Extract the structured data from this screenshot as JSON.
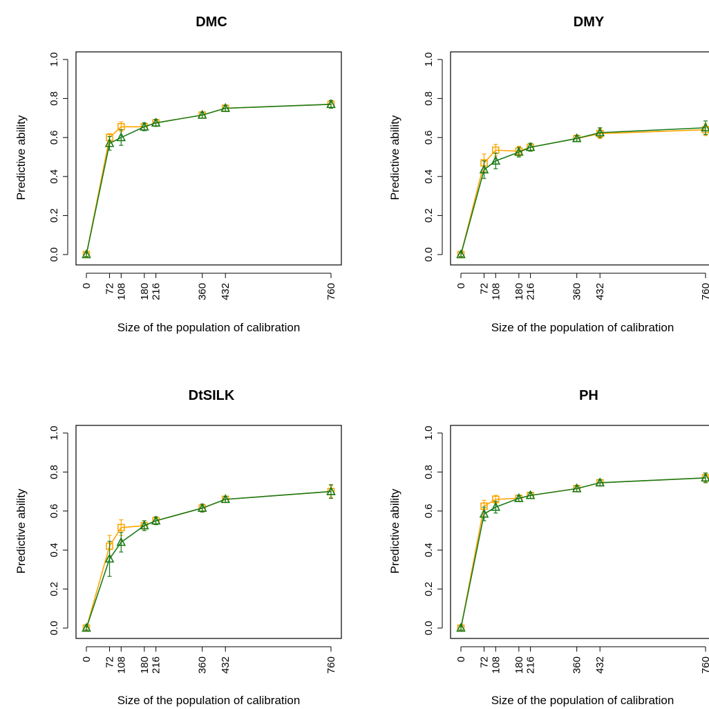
{
  "figure": {
    "ylabel": "Predictive ability",
    "xlabel": "Size of the population of calibration",
    "series_colors": {
      "orange": "#FFA500",
      "green": "#1A7A1A"
    },
    "series_markers": {
      "orange": "square",
      "green": "triangle"
    }
  },
  "chart_data": [
    {
      "type": "line",
      "title": "DMC",
      "xlabel": "Size of the population of calibration",
      "ylabel": "Predictive ability",
      "x": [
        0,
        72,
        108,
        180,
        216,
        360,
        432,
        760
      ],
      "x_ticks": [
        0,
        72,
        108,
        180,
        216,
        360,
        432,
        760
      ],
      "y_ticks": [
        "0.0",
        "0.2",
        "0.4",
        "0.6",
        "0.8",
        "1.0"
      ],
      "ylim": [
        0,
        1
      ],
      "grid": false,
      "series": [
        {
          "color": "#FFA500",
          "marker": "square",
          "values": [
            0.0,
            0.6,
            0.655,
            0.655,
            0.675,
            0.715,
            0.75,
            0.77
          ],
          "err": [
            0.01,
            0.02,
            0.025,
            0.02,
            0.018,
            0.015,
            0.015,
            0.02
          ]
        },
        {
          "color": "#1A7A1A",
          "marker": "triangle",
          "values": [
            0.0,
            0.57,
            0.6,
            0.655,
            0.675,
            0.715,
            0.75,
            0.77
          ],
          "err": [
            0.01,
            0.035,
            0.04,
            0.02,
            0.018,
            0.015,
            0.015,
            0.02
          ]
        }
      ]
    },
    {
      "type": "line",
      "title": "DMY",
      "xlabel": "Size of the population of calibration",
      "ylabel": "Predictive ability",
      "x": [
        0,
        72,
        108,
        180,
        216,
        360,
        432,
        760
      ],
      "x_ticks": [
        0,
        72,
        108,
        180,
        216,
        360,
        432,
        760
      ],
      "y_ticks": [
        "0.0",
        "0.2",
        "0.4",
        "0.6",
        "0.8",
        "1.0"
      ],
      "ylim": [
        0,
        1
      ],
      "grid": false,
      "series": [
        {
          "color": "#FFA500",
          "marker": "square",
          "values": [
            0.0,
            0.47,
            0.535,
            0.53,
            0.55,
            0.595,
            0.62,
            0.64
          ],
          "err": [
            0.01,
            0.045,
            0.03,
            0.025,
            0.02,
            0.015,
            0.025,
            0.03
          ]
        },
        {
          "color": "#1A7A1A",
          "marker": "triangle",
          "values": [
            0.0,
            0.435,
            0.48,
            0.525,
            0.55,
            0.595,
            0.625,
            0.65
          ],
          "err": [
            0.01,
            0.045,
            0.04,
            0.025,
            0.02,
            0.015,
            0.025,
            0.035
          ]
        }
      ]
    },
    {
      "type": "line",
      "title": "DtSILK",
      "xlabel": "Size of the population of calibration",
      "ylabel": "Predictive ability",
      "x": [
        0,
        72,
        108,
        180,
        216,
        360,
        432,
        760
      ],
      "x_ticks": [
        0,
        72,
        108,
        180,
        216,
        360,
        432,
        760
      ],
      "y_ticks": [
        "0.0",
        "0.2",
        "0.4",
        "0.6",
        "0.8",
        "1.0"
      ],
      "ylim": [
        0,
        1
      ],
      "grid": false,
      "series": [
        {
          "color": "#FFA500",
          "marker": "square",
          "values": [
            0.0,
            0.42,
            0.515,
            0.525,
            0.55,
            0.615,
            0.66,
            0.7
          ],
          "err": [
            0.01,
            0.055,
            0.04,
            0.025,
            0.02,
            0.02,
            0.015,
            0.03
          ]
        },
        {
          "color": "#1A7A1A",
          "marker": "triangle",
          "values": [
            0.0,
            0.355,
            0.44,
            0.525,
            0.55,
            0.615,
            0.66,
            0.7
          ],
          "err": [
            0.01,
            0.09,
            0.05,
            0.025,
            0.02,
            0.02,
            0.015,
            0.035
          ]
        }
      ]
    },
    {
      "type": "line",
      "title": "PH",
      "xlabel": "Size of the population of calibration",
      "ylabel": "Predictive ability",
      "x": [
        0,
        72,
        108,
        180,
        216,
        360,
        432,
        760
      ],
      "x_ticks": [
        0,
        72,
        108,
        180,
        216,
        360,
        432,
        760
      ],
      "y_ticks": [
        "0.0",
        "0.2",
        "0.4",
        "0.6",
        "0.8",
        "1.0"
      ],
      "ylim": [
        0,
        1
      ],
      "grid": false,
      "series": [
        {
          "color": "#FFA500",
          "marker": "square",
          "values": [
            0.0,
            0.625,
            0.66,
            0.665,
            0.68,
            0.715,
            0.745,
            0.77
          ],
          "err": [
            0.01,
            0.03,
            0.02,
            0.015,
            0.015,
            0.015,
            0.015,
            0.02
          ]
        },
        {
          "color": "#1A7A1A",
          "marker": "triangle",
          "values": [
            0.0,
            0.585,
            0.62,
            0.665,
            0.68,
            0.715,
            0.745,
            0.77
          ],
          "err": [
            0.01,
            0.035,
            0.03,
            0.015,
            0.015,
            0.015,
            0.015,
            0.025
          ]
        }
      ]
    }
  ]
}
